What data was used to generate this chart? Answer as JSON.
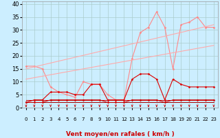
{
  "xlabel": "Vent moyen/en rafales ( km/h )",
  "bg_color": "#cceeff",
  "grid_color": "#aacccc",
  "xlim": [
    -0.5,
    23.5
  ],
  "ylim": [
    0,
    41
  ],
  "yticks": [
    0,
    5,
    10,
    15,
    20,
    25,
    30,
    35,
    40
  ],
  "xticks": [
    0,
    1,
    2,
    3,
    4,
    5,
    6,
    7,
    8,
    9,
    10,
    11,
    12,
    13,
    14,
    15,
    16,
    17,
    18,
    19,
    20,
    21,
    22,
    23
  ],
  "series": [
    {
      "label": "rafales_main",
      "color": "#ff8888",
      "lw": 0.8,
      "marker": "D",
      "markersize": 1.5,
      "x": [
        0,
        1,
        2,
        3,
        4,
        5,
        6,
        7,
        8,
        9,
        10,
        11,
        12,
        13,
        14,
        15,
        16,
        17,
        18,
        19,
        20,
        21,
        22,
        23
      ],
      "y": [
        16,
        16,
        15,
        8,
        6,
        5,
        4,
        10,
        9,
        9,
        5,
        3,
        3,
        19,
        29,
        31,
        37,
        31,
        15,
        32,
        33,
        35,
        31,
        31
      ]
    },
    {
      "label": "trend_upper",
      "color": "#ffaaaa",
      "lw": 0.8,
      "marker": null,
      "x": [
        0,
        23
      ],
      "y": [
        15,
        32
      ]
    },
    {
      "label": "trend_lower",
      "color": "#ffaaaa",
      "lw": 0.8,
      "marker": null,
      "x": [
        0,
        23
      ],
      "y": [
        11,
        24
      ]
    },
    {
      "label": "vent_main",
      "color": "#dd0000",
      "lw": 0.8,
      "marker": "D",
      "markersize": 1.5,
      "x": [
        0,
        1,
        2,
        3,
        4,
        5,
        6,
        7,
        8,
        9,
        10,
        11,
        12,
        13,
        14,
        15,
        16,
        17,
        18,
        19,
        20,
        21,
        22,
        23
      ],
      "y": [
        2,
        3,
        3,
        6,
        6,
        6,
        5,
        5,
        9,
        9,
        3,
        3,
        3,
        11,
        13,
        13,
        11,
        3,
        11,
        9,
        8,
        8,
        8,
        8
      ]
    },
    {
      "label": "flat_upper",
      "color": "#cc0000",
      "lw": 0.7,
      "marker": null,
      "x": [
        0,
        23
      ],
      "y": [
        3,
        3
      ]
    },
    {
      "label": "flat_lower",
      "color": "#aa0000",
      "lw": 0.7,
      "marker": null,
      "x": [
        0,
        23
      ],
      "y": [
        2,
        2
      ]
    },
    {
      "label": "vent_secondary",
      "color": "#cc0000",
      "lw": 0.7,
      "marker": "D",
      "markersize": 1.5,
      "x": [
        0,
        1,
        2,
        3,
        4,
        5,
        6,
        7,
        8,
        9,
        10,
        11,
        12,
        13,
        14,
        15,
        16,
        17,
        18,
        19,
        20,
        21,
        22,
        23
      ],
      "y": [
        2,
        2,
        2,
        3,
        3,
        3,
        3,
        3,
        3,
        3,
        2,
        2,
        2,
        3,
        3,
        3,
        3,
        2,
        3,
        3,
        3,
        3,
        3,
        3
      ]
    }
  ],
  "arrow_color": "#cc0000",
  "xlabel_color": "#cc0000",
  "xlabel_fontsize": 6.5,
  "tick_fontsize": 5,
  "ytick_fontsize": 6
}
